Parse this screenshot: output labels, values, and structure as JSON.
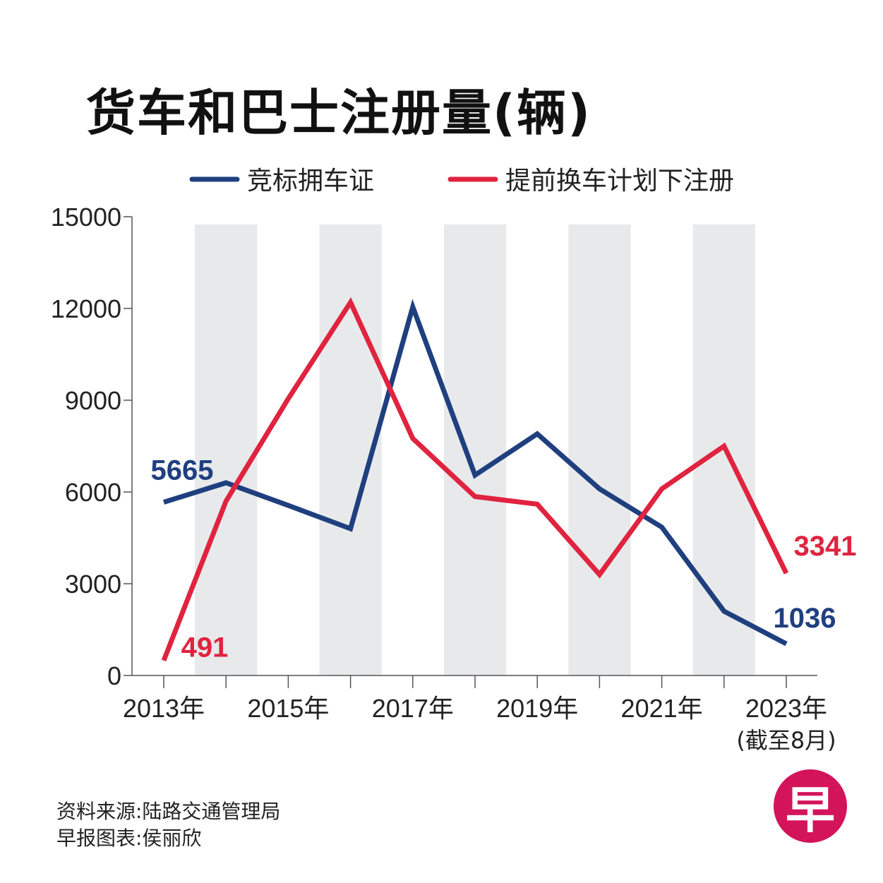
{
  "chart_data": {
    "type": "line",
    "title": "货车和巴士注册量(辆)",
    "x": [
      2013,
      2014,
      2015,
      2016,
      2017,
      2018,
      2019,
      2020,
      2021,
      2022,
      2023
    ],
    "x_tick_labels": [
      "2013年",
      "2015年",
      "2017年",
      "2019年",
      "2021年",
      "2023年"
    ],
    "x_tick_sublabel": "(截至8月)",
    "ylim": [
      0,
      15000
    ],
    "y_ticks": [
      "0",
      "3000",
      "6000",
      "9000",
      "12000",
      "15000"
    ],
    "series": [
      {
        "name": "竞标拥车证",
        "color": "#1f3f7f",
        "values": [
          5665,
          6300,
          5560,
          4800,
          12050,
          6550,
          7900,
          6100,
          4850,
          2100,
          1036
        ]
      },
      {
        "name": "提前换车计划下注册",
        "color": "#e0233f",
        "values": [
          491,
          5700,
          9050,
          12200,
          7750,
          5850,
          5600,
          3300,
          6100,
          7500,
          3341
        ]
      }
    ],
    "annotations": [
      {
        "text": "5665",
        "series": 0
      },
      {
        "text": "1036",
        "series": 0
      },
      {
        "text": "491",
        "series": 1
      },
      {
        "text": "3341",
        "series": 1
      }
    ]
  },
  "footer": {
    "source": "资料来源:陆路交通管理局",
    "credit": "早报图表:侯丽欣"
  },
  "logo": {
    "text": "早",
    "color": "#d4145a"
  }
}
